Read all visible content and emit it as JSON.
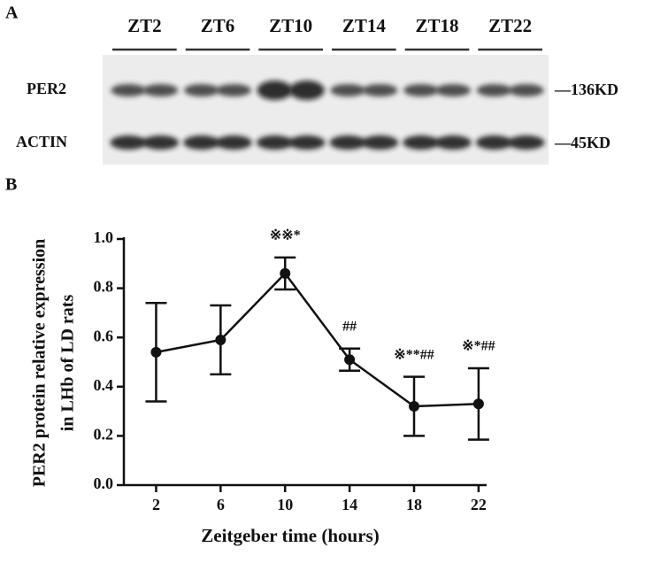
{
  "panel_a": {
    "label": "A",
    "lanes": [
      "ZT2",
      "ZT6",
      "ZT10",
      "ZT14",
      "ZT18",
      "ZT22"
    ],
    "rows": [
      {
        "name": "PER2",
        "size": "—136KD"
      },
      {
        "name": "ACTIN",
        "size": "—45KD"
      }
    ]
  },
  "chart_data": {
    "type": "line",
    "panel_label": "B",
    "x_label": "Zeitgeber time (hours)",
    "y_label": [
      "PER2 protein relative expression",
      "in LHb of LD rats"
    ],
    "x": [
      2,
      6,
      10,
      14,
      18,
      22
    ],
    "series": [
      {
        "color": "#111111",
        "values": [
          0.54,
          0.59,
          0.86,
          0.51,
          0.32,
          0.33
        ],
        "errors": [
          0.2,
          0.14,
          0.065,
          0.045,
          0.12,
          0.145
        ]
      }
    ],
    "annotations": [
      null,
      null,
      "※※*",
      "##",
      "※**##",
      "※*##"
    ],
    "xlim": [
      0,
      22.5
    ],
    "xticks": [
      2,
      6,
      10,
      14,
      18,
      22
    ],
    "ylim": [
      0,
      1
    ],
    "yticks": [
      {
        "value": 0,
        "label": "0.0"
      },
      0.2,
      0.4,
      0.6,
      0.8,
      {
        "value": 1,
        "label": "1.0"
      }
    ]
  }
}
